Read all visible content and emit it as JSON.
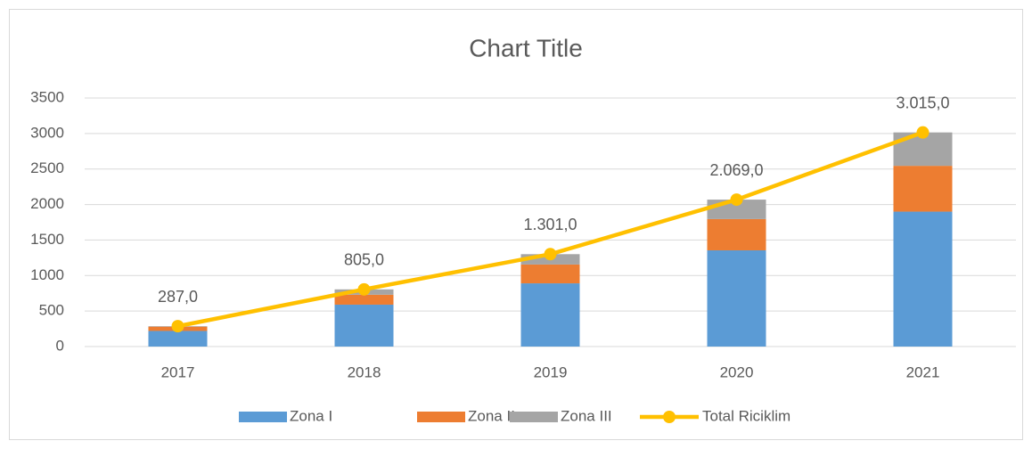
{
  "chart_data": {
    "type": "bar+line",
    "title": "Chart Title",
    "categories": [
      "2017",
      "2018",
      "2019",
      "2020",
      "2021"
    ],
    "series": [
      {
        "name": "Zona I",
        "color": "#5b9bd5",
        "type": "bar",
        "values": [
          220,
          590,
          890,
          1355,
          1900
        ]
      },
      {
        "name": "Zona II",
        "color": "#ed7d31",
        "type": "bar",
        "values": [
          60,
          140,
          265,
          440,
          645
        ]
      },
      {
        "name": "Zona III",
        "color": "#a5a5a5",
        "type": "bar",
        "values": [
          7,
          75,
          146,
          274,
          470
        ]
      },
      {
        "name": "Total Riciklim",
        "color": "#ffc000",
        "type": "line",
        "values": [
          287,
          805,
          1301,
          2069,
          3015
        ],
        "value_labels": [
          "287,0",
          "805,0",
          "1.301,0",
          "2.069,0",
          "3.015,0"
        ]
      }
    ],
    "ylim": [
      0,
      3500
    ],
    "yticks": [
      0,
      500,
      1000,
      1500,
      2000,
      2500,
      3000,
      3500
    ],
    "grid": true,
    "legend": "bottom"
  }
}
